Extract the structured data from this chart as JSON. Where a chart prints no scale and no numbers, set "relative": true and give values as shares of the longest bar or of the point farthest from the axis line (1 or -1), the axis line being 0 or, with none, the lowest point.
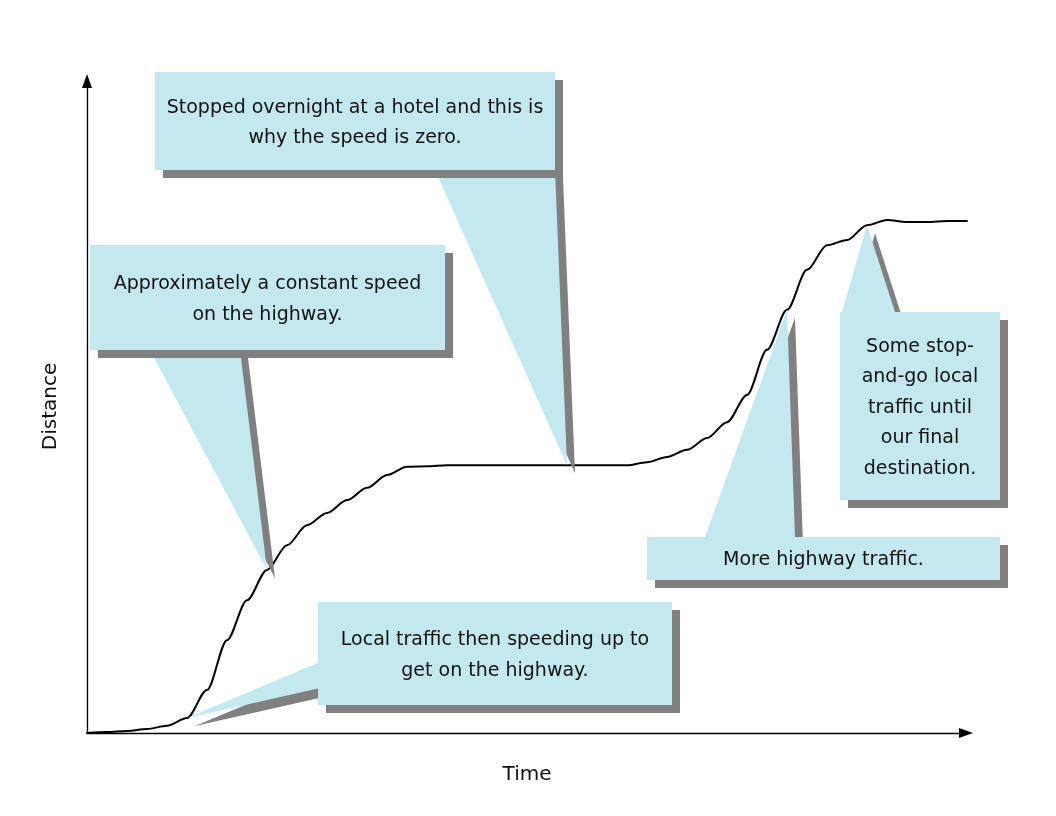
{
  "chart_data": {
    "type": "line",
    "relative": true,
    "xlabel": "Time",
    "ylabel": "Distance",
    "color": "#000000",
    "marker": "none",
    "line_style": "solid",
    "grid": false,
    "tick_labels": false,
    "categories": [
      null,
      null,
      null,
      null,
      null,
      null,
      null,
      null,
      null,
      null,
      null,
      null,
      null,
      null,
      null,
      null,
      null,
      null,
      null,
      null,
      null,
      null,
      null,
      null,
      null,
      null,
      null,
      null,
      null,
      null,
      null,
      null,
      null,
      null,
      null,
      null,
      null,
      null,
      null,
      null,
      null,
      null,
      null,
      null,
      null
    ],
    "values": [
      0,
      0.002,
      0.004,
      0.008,
      0.014,
      0.029,
      0.084,
      0.181,
      0.259,
      0.318,
      0.366,
      0.405,
      0.429,
      0.454,
      0.478,
      0.503,
      0.519,
      0.52,
      0.522,
      0.522,
      0.522,
      0.522,
      0.522,
      0.522,
      0.522,
      0.522,
      0.522,
      0.522,
      0.528,
      0.538,
      0.552,
      0.575,
      0.606,
      0.659,
      0.747,
      0.825,
      0.903,
      0.951,
      0.961,
      0.99,
      1,
      0.996,
      0.996,
      0.998,
      0.998
    ],
    "annotations": [
      "Local traffic then speeding up to get on the highway.",
      "Approximately a constant speed on the highway.",
      "Stopped overnight at a hotel and this is why the speed is zero.",
      "More highway traffic.",
      "Some stop-and-go local traffic until our final destination."
    ]
  }
}
